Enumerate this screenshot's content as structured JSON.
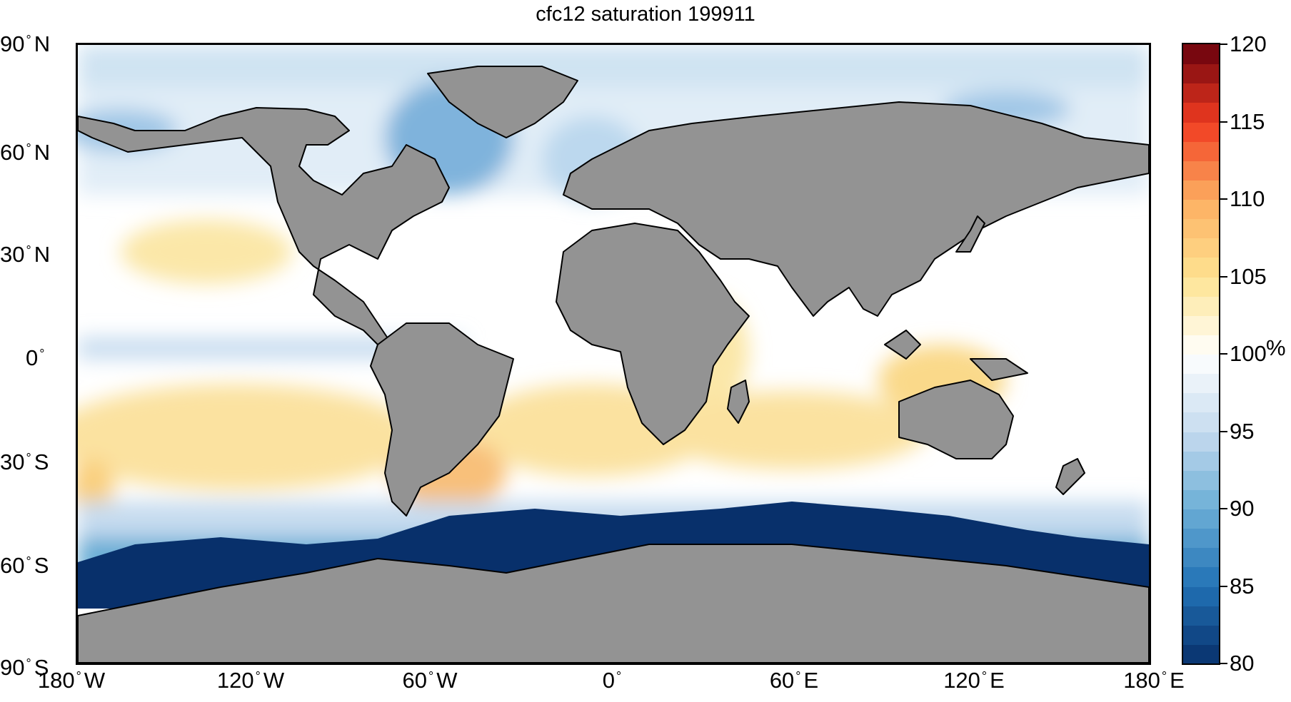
{
  "title": "cfc12 saturation 199911",
  "lat_labels": [
    {
      "num": "90",
      "hemi": "N"
    },
    {
      "num": "60",
      "hemi": "N"
    },
    {
      "num": "30",
      "hemi": "N"
    },
    {
      "num": "0",
      "hemi": ""
    },
    {
      "num": "30",
      "hemi": "S"
    },
    {
      "num": "60",
      "hemi": "S"
    },
    {
      "num": "90",
      "hemi": "S"
    }
  ],
  "lon_labels": [
    {
      "num": "180",
      "hemi": "W"
    },
    {
      "num": "120",
      "hemi": "W"
    },
    {
      "num": "60",
      "hemi": "W"
    },
    {
      "num": "0",
      "hemi": ""
    },
    {
      "num": "60",
      "hemi": "E"
    },
    {
      "num": "120",
      "hemi": "E"
    },
    {
      "num": "180",
      "hemi": "E"
    }
  ],
  "colorbar": {
    "min": 80,
    "max": 120,
    "ticks": [
      "80",
      "85",
      "90",
      "95",
      "100",
      "105",
      "110",
      "115",
      "120"
    ],
    "unit": "%",
    "colors": [
      "#08306b",
      "#2171b5",
      "#6baed6",
      "#c6dbef",
      "#ffffff",
      "#fee391",
      "#fdae61",
      "#f03b20",
      "#67000d"
    ]
  },
  "map_colors": {
    "land": "#939393",
    "coastline": "#000000",
    "ocean_neutral": "#ffffff"
  }
}
